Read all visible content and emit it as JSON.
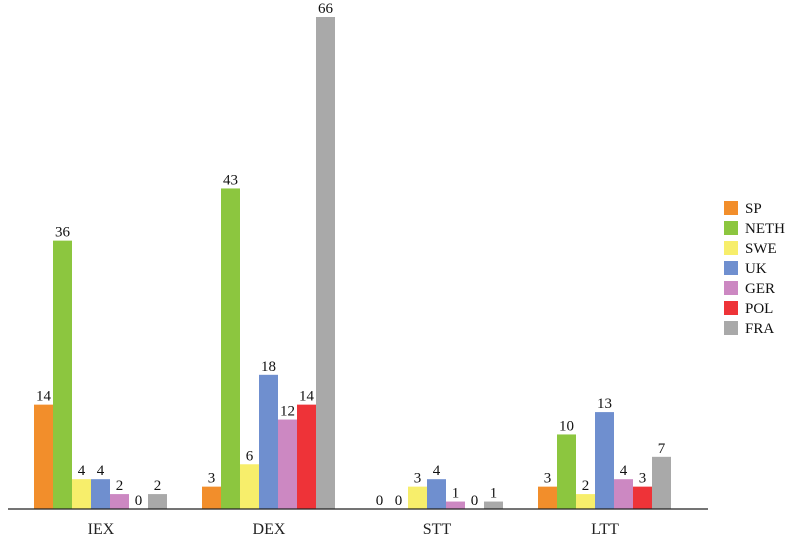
{
  "chart_data": {
    "type": "bar",
    "categories": [
      "IEX",
      "DEX",
      "STT",
      "LTT"
    ],
    "series": [
      {
        "name": "SP",
        "color": "#f28e2b",
        "values": [
          14,
          3,
          0,
          3
        ]
      },
      {
        "name": "NETH",
        "color": "#8cc63f",
        "values": [
          36,
          43,
          0,
          10
        ]
      },
      {
        "name": "SWE",
        "color": "#f7ee6b",
        "values": [
          4,
          6,
          3,
          2
        ]
      },
      {
        "name": "UK",
        "color": "#6f8fcf",
        "values": [
          4,
          18,
          4,
          13
        ]
      },
      {
        "name": "GER",
        "color": "#cc88c2",
        "values": [
          2,
          12,
          1,
          4
        ]
      },
      {
        "name": "POL",
        "color": "#ee3338",
        "values": [
          null,
          14,
          null,
          3
        ]
      },
      {
        "name": "FRA",
        "color": "#a9a9a9",
        "values": [
          2,
          66,
          1,
          7
        ]
      }
    ],
    "value_labels": [
      [
        "14",
        "3",
        "0",
        "3"
      ],
      [
        "36",
        "43",
        "0",
        "10"
      ],
      [
        "4",
        "6",
        "3",
        "2"
      ],
      [
        "4",
        "18",
        "4",
        "13"
      ],
      [
        "2",
        "12",
        "1",
        "4"
      ],
      [
        "0",
        "14",
        "0",
        "3"
      ],
      [
        "2",
        "66",
        "1",
        "7"
      ]
    ],
    "ylim": [
      0,
      66
    ],
    "grid": false,
    "legend_position": "right"
  }
}
